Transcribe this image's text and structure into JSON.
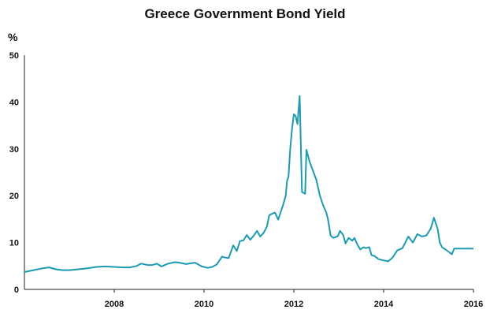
{
  "chart_data": {
    "type": "line",
    "title": "Greece Government Bond Yield",
    "ylabel": "%",
    "xlabel": "",
    "ylim": [
      0,
      50
    ],
    "xlim": [
      2006.0,
      2016.0
    ],
    "y_ticks": [
      0,
      10,
      20,
      30,
      40,
      50
    ],
    "x_ticks": [
      2008,
      2010,
      2012,
      2014,
      2016
    ],
    "grid": false,
    "line_color": "#1a9bb5",
    "series": [
      {
        "x": [
          2006.0,
          2006.2,
          2006.4,
          2006.55,
          2006.7,
          2006.85,
          2007.0,
          2007.2,
          2007.4,
          2007.6,
          2007.8,
          2008.0,
          2008.2,
          2008.35,
          2008.5,
          2008.6,
          2008.75,
          2008.85,
          2008.95,
          2009.05,
          2009.2,
          2009.35,
          2009.45,
          2009.6,
          2009.8,
          2009.95,
          2010.08,
          2010.18,
          2010.28,
          2010.33,
          2010.4,
          2010.47,
          2010.55,
          2010.65,
          2010.73,
          2010.8,
          2010.88,
          2010.95,
          2011.03,
          2011.1,
          2011.18,
          2011.25,
          2011.33,
          2011.4,
          2011.45,
          2011.5,
          2011.58,
          2011.65,
          2011.7,
          2011.76,
          2011.82,
          2011.85,
          2011.88,
          2011.92,
          2011.96,
          2012.0,
          2012.04,
          2012.08,
          2012.13,
          2012.18,
          2012.25,
          2012.28,
          2012.35,
          2012.42,
          2012.5,
          2012.58,
          2012.65,
          2012.72,
          2012.76,
          2012.82,
          2012.88,
          2012.94,
          2012.98,
          2013.03,
          2013.1,
          2013.15,
          2013.22,
          2013.3,
          2013.35,
          2013.42,
          2013.48,
          2013.55,
          2013.6,
          2013.68,
          2013.73,
          2013.8,
          2013.88,
          2013.95,
          2014.0,
          2014.05,
          2014.1,
          2014.2,
          2014.3,
          2014.42,
          2014.55,
          2014.65,
          2014.75,
          2014.85,
          2014.95,
          2015.05,
          2015.12,
          2015.2,
          2015.25,
          2015.3,
          2015.38,
          2015.45,
          2015.52,
          2015.57,
          2015.6,
          2015.67,
          2015.72,
          2015.8,
          2015.88,
          2015.95,
          2016.0
        ],
        "y": [
          3.7,
          4.1,
          4.5,
          4.7,
          4.3,
          4.1,
          4.1,
          4.3,
          4.5,
          4.8,
          4.9,
          4.8,
          4.7,
          4.7,
          5.0,
          5.5,
          5.2,
          5.2,
          5.5,
          4.9,
          5.5,
          5.8,
          5.7,
          5.4,
          5.7,
          4.9,
          4.6,
          4.8,
          5.3,
          6.0,
          7.0,
          6.8,
          6.7,
          9.4,
          8.2,
          10.3,
          10.5,
          11.6,
          10.6,
          11.4,
          12.5,
          11.3,
          12.1,
          13.4,
          15.8,
          16.1,
          16.4,
          14.9,
          16.3,
          18.0,
          20.0,
          23.2,
          24.0,
          30.0,
          34.3,
          37.4,
          37.0,
          35.3,
          41.3,
          20.8,
          20.4,
          29.8,
          27.3,
          25.5,
          23.4,
          20.0,
          18.0,
          16.5,
          15.0,
          11.5,
          11.0,
          11.2,
          11.4,
          12.5,
          11.6,
          9.8,
          11.0,
          10.4,
          11.0,
          9.5,
          8.5,
          9.0,
          8.8,
          9.0,
          7.3,
          7.1,
          6.5,
          6.3,
          6.2,
          6.1,
          6.0,
          6.8,
          8.3,
          8.8,
          11.3,
          10.0,
          11.8,
          11.3,
          11.5,
          13.0,
          15.3,
          13.0,
          10.0,
          9.0,
          8.5,
          8.0,
          7.5,
          8.7,
          8.7,
          8.7,
          8.7,
          8.7,
          8.7,
          8.7,
          8.7
        ]
      }
    ]
  }
}
